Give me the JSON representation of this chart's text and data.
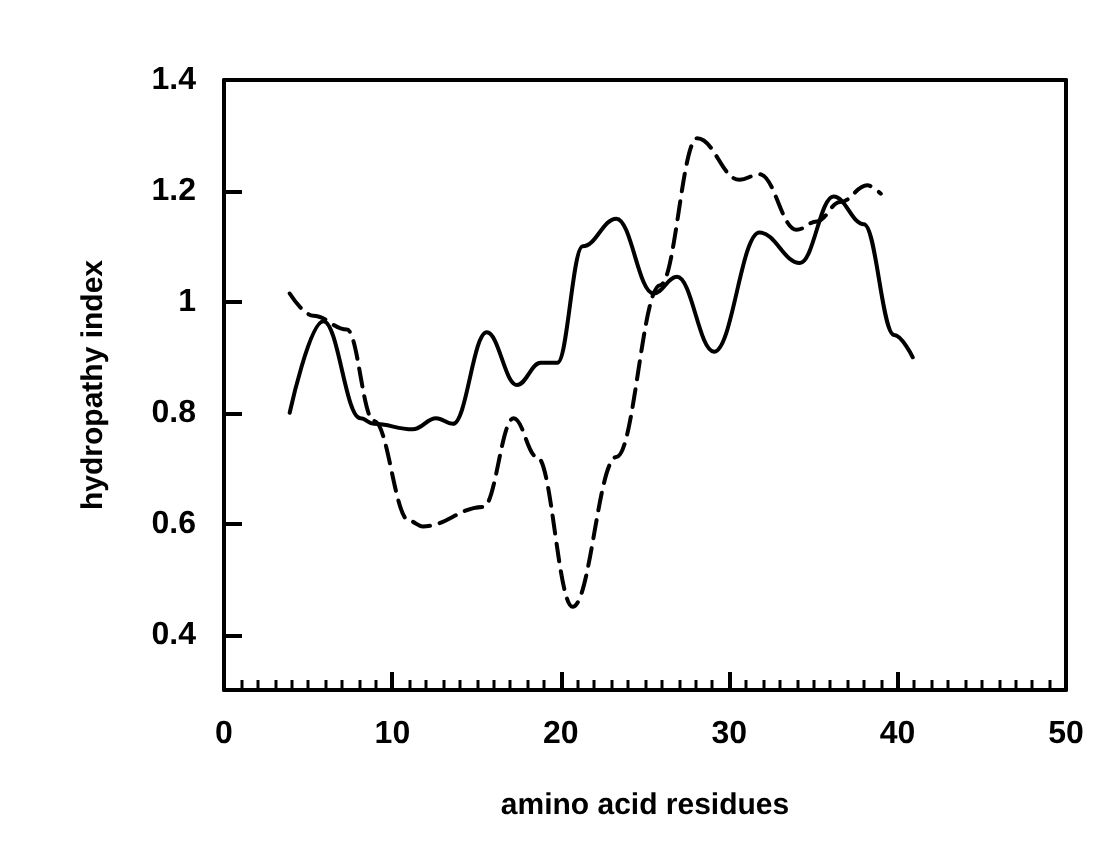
{
  "chart_data": {
    "type": "line",
    "xlabel": "amino acid residues",
    "ylabel": "hydropathy index",
    "xlim": [
      0,
      50
    ],
    "xticks": [
      0,
      10,
      20,
      30,
      40,
      50
    ],
    "ylim": [
      0.3,
      1.4
    ],
    "yticks": [
      0.4,
      0.6,
      0.8,
      1,
      1.2,
      1.4
    ],
    "grid": false,
    "marker": "none",
    "series": [
      {
        "color": "#000000",
        "line_style": "solid",
        "x": [
          3.9,
          5.9,
          8.1,
          8.9,
          11.2,
          12.6,
          13.6,
          15.6,
          17.4,
          18.8,
          19.8,
          21.3,
          23.3,
          25.5,
          26.9,
          29.1,
          31.8,
          34.2,
          36.2,
          38.0,
          39.8,
          40.9
        ],
        "values": [
          0.8,
          0.965,
          0.79,
          0.78,
          0.77,
          0.79,
          0.78,
          0.945,
          0.85,
          0.89,
          0.89,
          1.1,
          1.15,
          1.015,
          1.045,
          0.91,
          1.125,
          1.07,
          1.19,
          1.14,
          0.94,
          0.9
        ]
      },
      {
        "color": "#000000",
        "line_style": "dashed",
        "x": [
          3.9,
          5.3,
          7.3,
          8.9,
          11.0,
          11.8,
          15.4,
          17.2,
          18.6,
          20.7,
          23.3,
          25.9,
          28.1,
          30.6,
          31.8,
          34.0,
          35.2,
          36.6,
          38.2,
          39.0
        ],
        "values": [
          1.015,
          0.975,
          0.95,
          0.785,
          0.605,
          0.595,
          0.63,
          0.79,
          0.72,
          0.45,
          0.72,
          1.03,
          1.295,
          1.22,
          1.23,
          1.13,
          1.145,
          1.18,
          1.21,
          1.195
        ]
      }
    ]
  }
}
